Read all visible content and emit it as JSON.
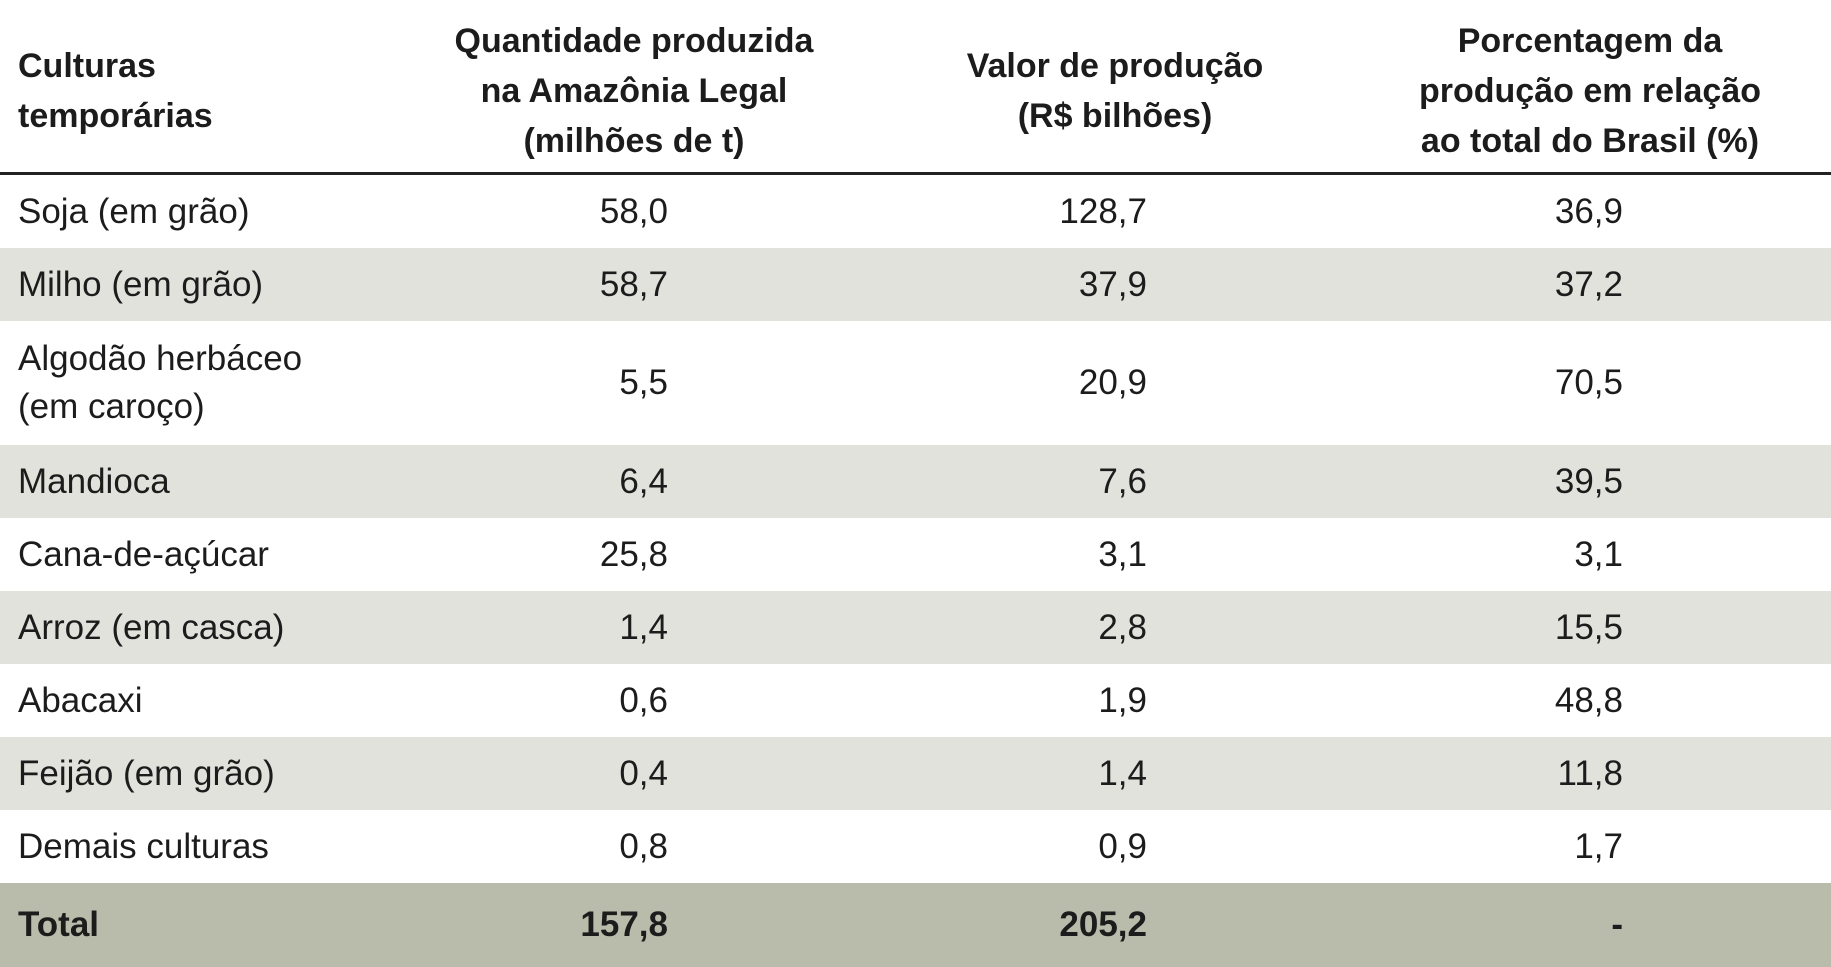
{
  "table": {
    "headers": [
      "Culturas\ntemporárias",
      "Quantidade produzida\nna Amazônia Legal\n(milhões de t)",
      "Valor de produção\n(R$ bilhões)",
      "Porcentagem da\nprodução em relação\nao total do Brasil (%)"
    ],
    "rows": [
      {
        "crop": "Soja (em grão)",
        "quantity": "58,0",
        "value": "128,7",
        "percent": "36,9"
      },
      {
        "crop": "Milho (em grão)",
        "quantity": "58,7",
        "value": "37,9",
        "percent": "37,2"
      },
      {
        "crop": "Algodão herbáceo (em caroço)",
        "quantity": "5,5",
        "value": "20,9",
        "percent": "70,5"
      },
      {
        "crop": "Mandioca",
        "quantity": "6,4",
        "value": "7,6",
        "percent": "39,5"
      },
      {
        "crop": "Cana-de-açúcar",
        "quantity": "25,8",
        "value": "3,1",
        "percent": "3,1"
      },
      {
        "crop": "Arroz (em casca)",
        "quantity": "1,4",
        "value": "2,8",
        "percent": "15,5"
      },
      {
        "crop": "Abacaxi",
        "quantity": "0,6",
        "value": "1,9",
        "percent": "48,8"
      },
      {
        "crop": "Feijão (em grão)",
        "quantity": "0,4",
        "value": "1,4",
        "percent": "11,8"
      },
      {
        "crop": "Demais culturas",
        "quantity": "0,8",
        "value": "0,9",
        "percent": "1,7"
      }
    ],
    "total": {
      "crop": "Total",
      "quantity": "157,8",
      "value": "205,2",
      "percent": "-"
    }
  },
  "colors": {
    "stripe": "#e2e2dd",
    "total": "#b9bcaa",
    "rule": "#222222"
  }
}
